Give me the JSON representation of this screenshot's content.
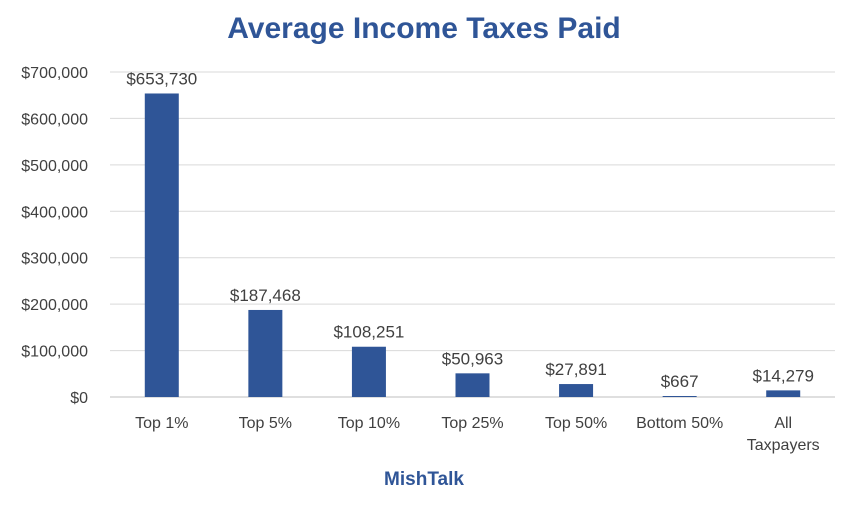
{
  "chart_data": {
    "type": "bar",
    "title": "Average Income Taxes Paid",
    "xlabel": "",
    "ylabel": "",
    "categories": [
      "Top 1%",
      "Top 5%",
      "Top 10%",
      "Top 25%",
      "Top 50%",
      "Bottom 50%",
      "All Taxpayers"
    ],
    "category_lines": [
      [
        "Top 1%"
      ],
      [
        "Top 5%"
      ],
      [
        "Top 10%"
      ],
      [
        "Top 25%"
      ],
      [
        "Top 50%"
      ],
      [
        "Bottom 50%"
      ],
      [
        "All",
        "Taxpayers"
      ]
    ],
    "values": [
      653730,
      187468,
      108251,
      50963,
      27891,
      667,
      14279
    ],
    "data_labels": [
      "$653,730",
      "$187,468",
      "$108,251",
      "$50,963",
      "$27,891",
      "$667",
      "$14,279"
    ],
    "ylim": [
      0,
      700000
    ],
    "yticks": [
      0,
      100000,
      200000,
      300000,
      400000,
      500000,
      600000,
      700000
    ],
    "ytick_labels": [
      "$0",
      "$100,000",
      "$200,000",
      "$300,000",
      "$400,000",
      "$500,000",
      "$600,000",
      "$700,000"
    ],
    "grid": true,
    "legend": "none",
    "source_label": "MishTalk",
    "colors": {
      "bar": "#2f5597",
      "title": "#2f5597",
      "source": "#2f5597",
      "grid": "#d9d9d9",
      "axis_text": "#404040"
    }
  }
}
